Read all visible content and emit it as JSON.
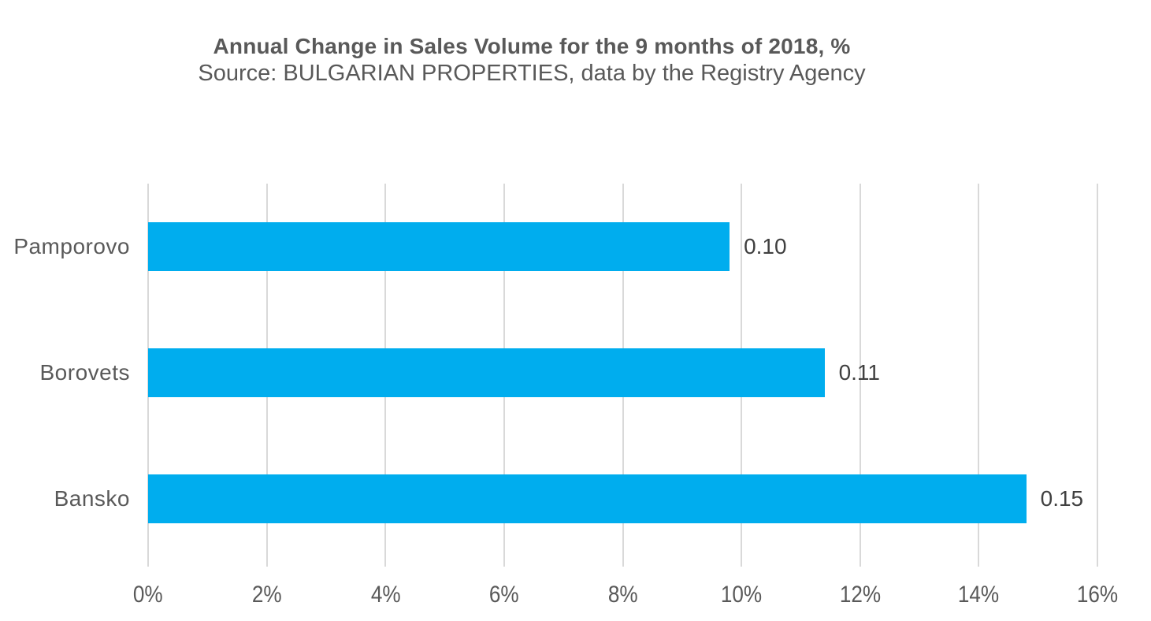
{
  "chart": {
    "title": "Annual Change in Sales Volume for the 9 months of 2018, %",
    "subtitle": "Source: BULGARIAN PROPERTIES, data by the Registry Agency"
  },
  "chart_data": {
    "type": "bar",
    "orientation": "horizontal",
    "title": "Annual Change in Sales Volume for the 9 months of 2018, %",
    "subtitle": "Source: BULGARIAN PROPERTIES, data by the Registry Agency",
    "categories": [
      "Pamporovo",
      "Borovets",
      "Bansko"
    ],
    "values_percent": [
      9.8,
      11.4,
      14.8
    ],
    "data_labels": [
      "0.10",
      "0.11",
      "0.15"
    ],
    "x_ticks": [
      {
        "value": 0,
        "label": "0%"
      },
      {
        "value": 2,
        "label": "2%"
      },
      {
        "value": 4,
        "label": "4%"
      },
      {
        "value": 6,
        "label": "6%"
      },
      {
        "value": 8,
        "label": "8%"
      },
      {
        "value": 10,
        "label": "10%"
      },
      {
        "value": 12,
        "label": "12%"
      },
      {
        "value": 14,
        "label": "14%"
      },
      {
        "value": 16,
        "label": "16%"
      }
    ],
    "xlim": [
      0,
      16
    ],
    "xlabel": "",
    "ylabel": "",
    "grid": "vertical-gridlines-on",
    "legend": "none",
    "colors": {
      "bar": "#00ADEE",
      "gridline": "#D9D9D9",
      "title_text": "#595959",
      "axis_text": "#595959",
      "data_label_text": "#404040"
    }
  }
}
